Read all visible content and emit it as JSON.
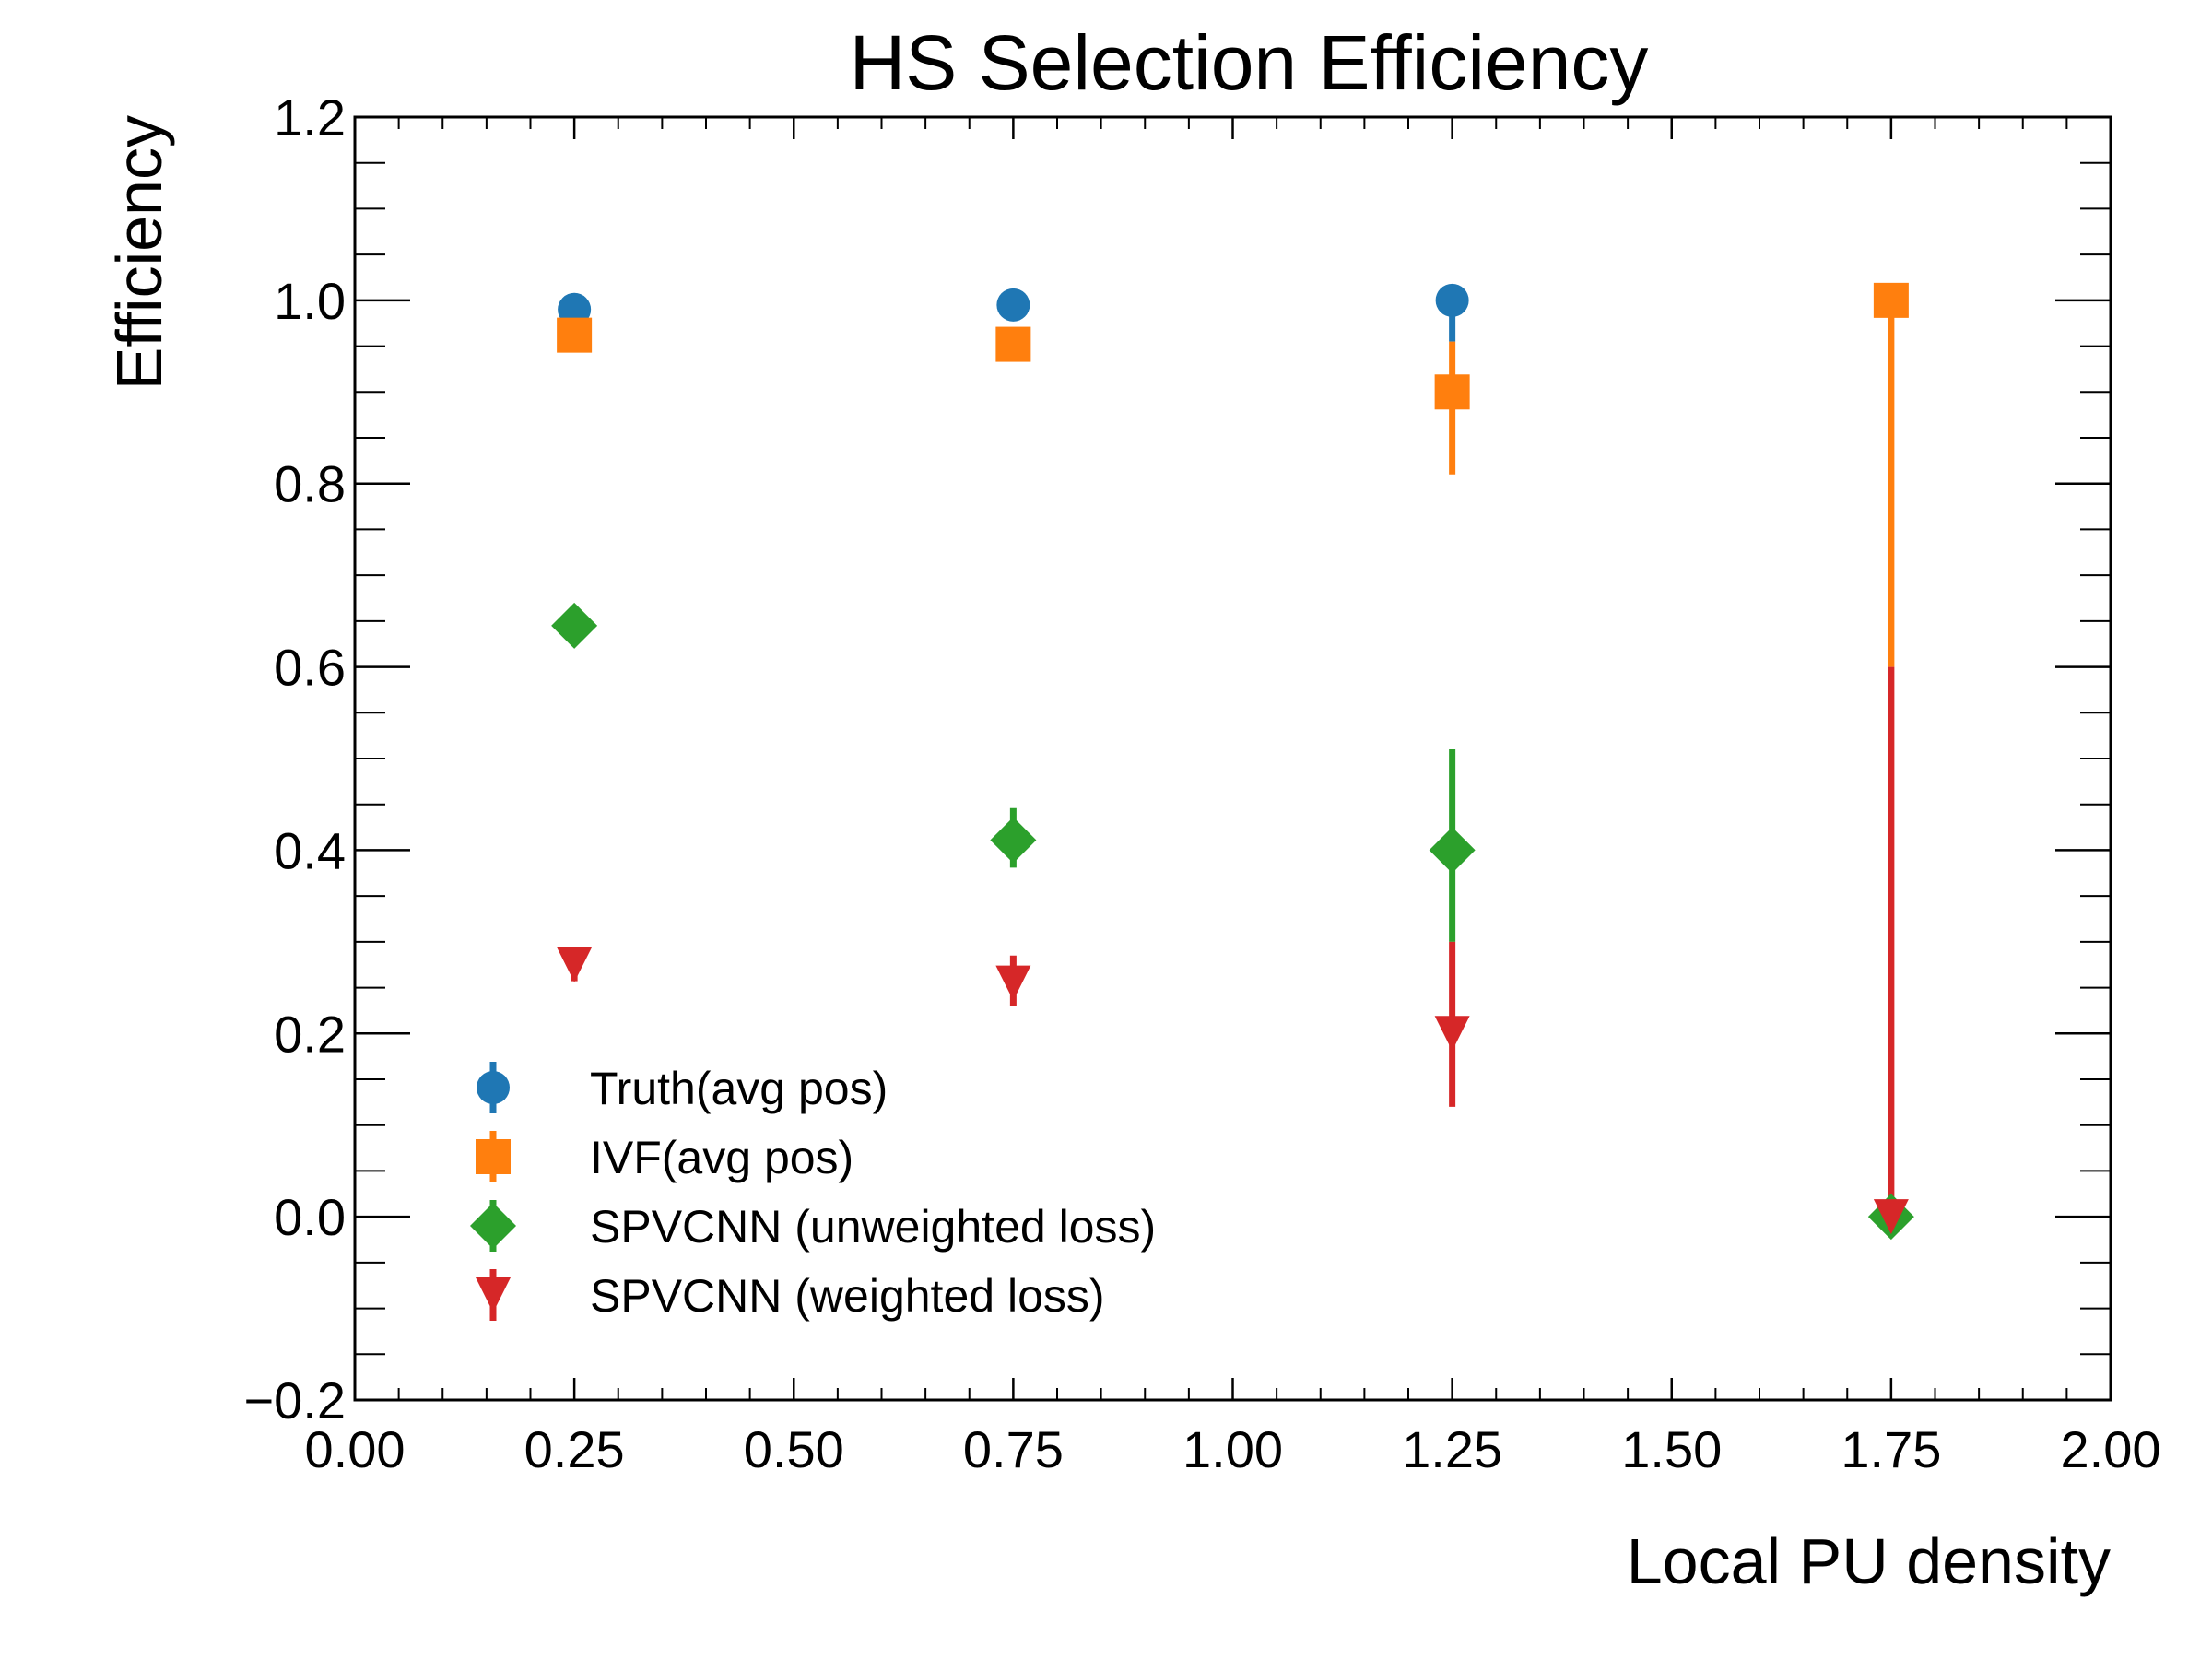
{
  "chart_data": {
    "type": "scatter",
    "title": "HS Selection Efficiency",
    "xlabel": "Local PU density",
    "ylabel": "Efficiency",
    "xlim": [
      0.0,
      2.0
    ],
    "ylim": [
      -0.2,
      1.2
    ],
    "xticks": [
      "0.00",
      "0.25",
      "0.50",
      "0.75",
      "1.00",
      "1.25",
      "1.50",
      "1.75",
      "2.00"
    ],
    "xtick_values": [
      0.0,
      0.25,
      0.5,
      0.75,
      1.0,
      1.25,
      1.5,
      1.75,
      2.0
    ],
    "yticks": [
      "−0.2",
      "0.0",
      "0.2",
      "0.4",
      "0.6",
      "0.8",
      "1.0",
      "1.2"
    ],
    "ytick_values": [
      -0.2,
      0.0,
      0.2,
      0.4,
      0.6,
      0.8,
      1.0,
      1.2
    ],
    "grid": false,
    "legend_position": "lower-left",
    "series": [
      {
        "name": "Truth(avg pos)",
        "marker": "circle",
        "color": "#1f77b4",
        "x": [
          0.25,
          0.75,
          1.25
        ],
        "y": [
          0.99,
          0.995,
          1.0
        ],
        "yerr_low": [
          0.01,
          0.005,
          0.045
        ],
        "yerr_high": [
          0.0,
          0.0,
          0.0
        ]
      },
      {
        "name": "IVF(avg pos)",
        "marker": "square",
        "color": "#ff7f0e",
        "x": [
          0.25,
          0.75,
          1.25,
          1.75
        ],
        "y": [
          0.962,
          0.952,
          0.9,
          1.0
        ],
        "yerr_low": [
          0.012,
          0.01,
          0.09,
          0.4
        ],
        "yerr_high": [
          0.008,
          0.008,
          0.055,
          0.0
        ]
      },
      {
        "name": "SPVCNN (unweighted loss)",
        "marker": "diamond",
        "color": "#2ca02c",
        "x": [
          0.25,
          0.75,
          1.25,
          1.75
        ],
        "y": [
          0.645,
          0.411,
          0.4,
          0.0
        ],
        "yerr_low": [
          0.015,
          0.03,
          0.1,
          0.0
        ],
        "yerr_high": [
          0.015,
          0.035,
          0.11,
          0.0
        ]
      },
      {
        "name": "SPVCNN (weighted loss)",
        "marker": "triangle-down",
        "color": "#d62728",
        "x": [
          0.25,
          0.75,
          1.25,
          1.75
        ],
        "y": [
          0.275,
          0.255,
          0.2,
          0.0
        ],
        "yerr_low": [
          0.018,
          0.025,
          0.08,
          0.0
        ],
        "yerr_high": [
          0.012,
          0.03,
          0.1,
          0.6
        ]
      }
    ]
  }
}
